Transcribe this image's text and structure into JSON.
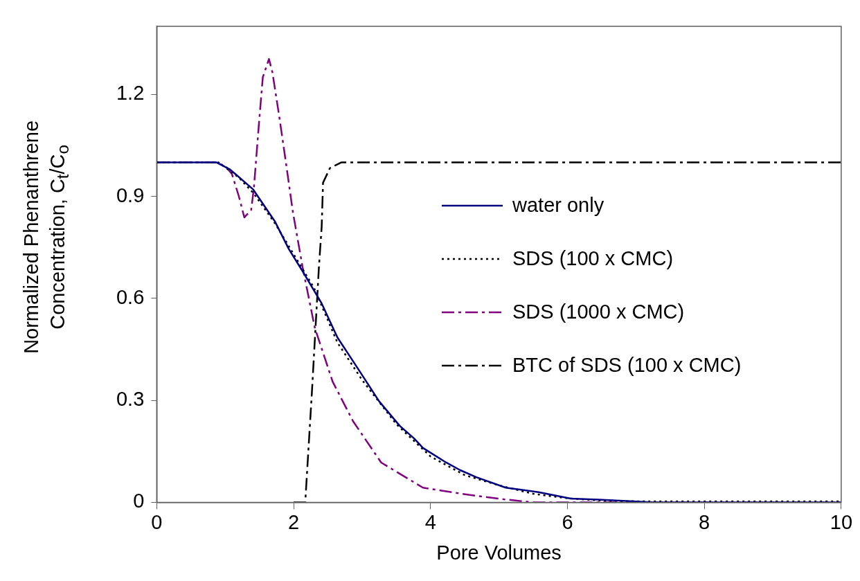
{
  "chart_data": {
    "type": "line",
    "xlabel": "Pore Volumes",
    "ylabel": "Normalized Phenanthrene Concentration, C$_{t}$/C$_{o}$",
    "xlim": [
      0,
      10
    ],
    "xticks": [
      0,
      2,
      4,
      6,
      8,
      10
    ],
    "ylim": [
      0,
      1.4
    ],
    "yticks": [
      0,
      0.3,
      0.6,
      0.9,
      1.2
    ],
    "grid": false,
    "legend": "right",
    "marker": "none",
    "series": [
      {
        "name": "water only",
        "color": "#000080",
        "line_style": "solid",
        "x": [
          0,
          0.87,
          1.07,
          1.17,
          1.41,
          1.73,
          1.93,
          2.13,
          2.41,
          2.64,
          2.95,
          3.25,
          3.55,
          3.76,
          3.89,
          4.23,
          4.43,
          4.67,
          5.1,
          5.58,
          6.05,
          6.46,
          7.27,
          10
        ],
        "values": [
          1,
          1,
          0.979,
          0.962,
          0.92,
          0.825,
          0.745,
          0.68,
          0.585,
          0.485,
          0.39,
          0.297,
          0.225,
          0.188,
          0.16,
          0.117,
          0.095,
          0.074,
          0.043,
          0.03,
          0.011,
          0.008,
          0,
          0
        ]
      },
      {
        "name": "SDS (100 x CMC)",
        "color": "#000000",
        "line_style": "dotted",
        "x": [
          0,
          0.9,
          1.07,
          1.2,
          1.41,
          1.73,
          2,
          2.3,
          2.64,
          3,
          3.5,
          4,
          4.5,
          5,
          5.5,
          6,
          6.5,
          7,
          10
        ],
        "values": [
          1,
          1,
          0.975,
          0.955,
          0.91,
          0.82,
          0.73,
          0.63,
          0.47,
          0.36,
          0.23,
          0.135,
          0.08,
          0.05,
          0.025,
          0.012,
          0.005,
          0.003,
          0.003
        ]
      },
      {
        "name": "SDS (1000 x CMC)",
        "color": "#800080",
        "line_style": "dashed",
        "x": [
          0,
          0.85,
          1,
          1.1,
          1.2,
          1.28,
          1.38,
          1.42,
          1.49,
          1.55,
          1.64,
          1.69,
          1.79,
          1.89,
          1.99,
          2.13,
          2.31,
          2.57,
          2.87,
          3.28,
          3.89,
          4.56,
          5.07,
          5.5,
          10
        ],
        "values": [
          1,
          1,
          0.99,
          0.965,
          0.9,
          0.838,
          0.86,
          0.925,
          1.105,
          1.25,
          1.304,
          1.265,
          1.135,
          0.996,
          0.853,
          0.693,
          0.513,
          0.355,
          0.238,
          0.117,
          0.043,
          0.022,
          0.009,
          0,
          0
        ]
      },
      {
        "name": "BTC of SDS (100 x CMC)",
        "color": "#000000",
        "line_style": "dashed",
        "x": [
          2,
          2.17,
          2.27,
          2.32,
          2.37,
          2.41,
          2.43,
          2.53,
          2.7,
          10
        ],
        "values": [
          0,
          0,
          0.333,
          0.513,
          0.693,
          0.81,
          0.94,
          0.983,
          1,
          1
        ]
      }
    ]
  }
}
